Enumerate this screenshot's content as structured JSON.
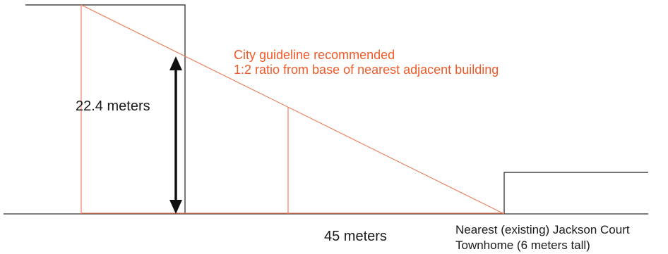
{
  "labels": {
    "height": "22.4 meters",
    "distance": "45 meters",
    "guideline_line1": "City guideline recommended",
    "guideline_line2": "1:2 ratio from base of nearest adjacent building",
    "townhome_line1": "Nearest (existing) Jackson Court",
    "townhome_line2": "Townhome (6 meters tall)"
  },
  "colors": {
    "building": "#222222",
    "guide": "#f08060",
    "guide_text": "#f05a28",
    "arrow": "#111111"
  }
}
